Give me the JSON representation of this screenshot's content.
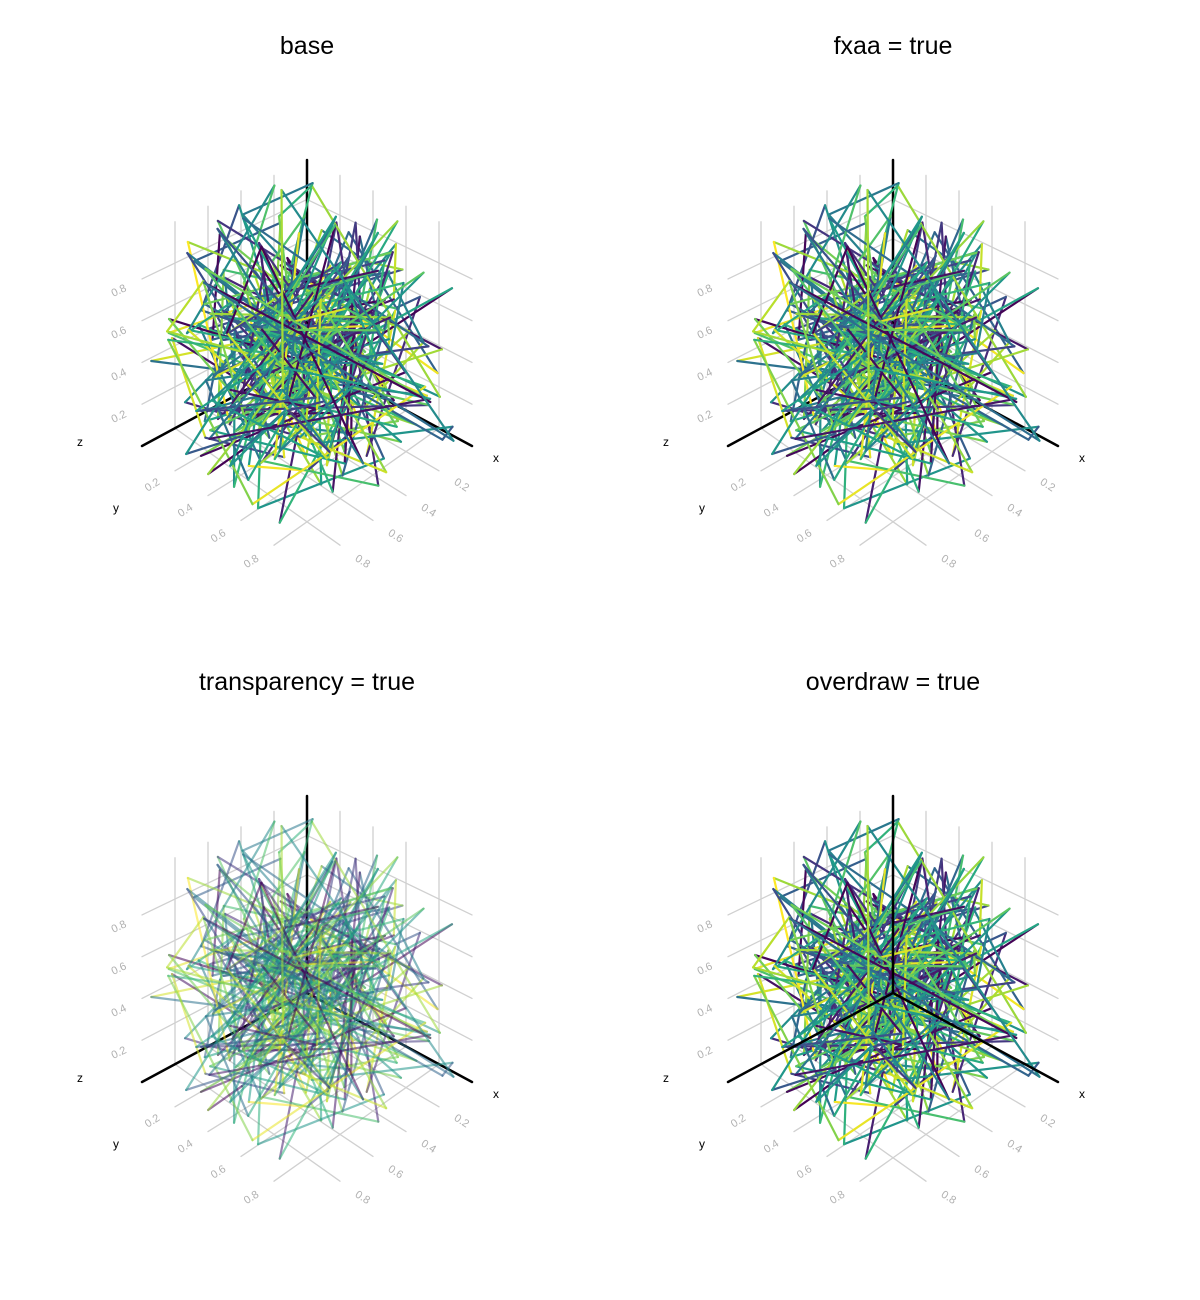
{
  "chart_data": [
    {
      "type": "line",
      "projection": "3d",
      "title": "base",
      "xlabel": "x",
      "ylabel": "y",
      "zlabel": "z",
      "options": {
        "fxaa": false,
        "transparency": false,
        "overdraw": false
      }
    },
    {
      "type": "line",
      "projection": "3d",
      "title": "fxaa = true",
      "xlabel": "x",
      "ylabel": "y",
      "zlabel": "z",
      "options": {
        "fxaa": true,
        "transparency": false,
        "overdraw": false
      }
    },
    {
      "type": "line",
      "projection": "3d",
      "title": "transparency = true",
      "xlabel": "x",
      "ylabel": "y",
      "zlabel": "z",
      "options": {
        "fxaa": false,
        "transparency": true,
        "overdraw": false
      }
    },
    {
      "type": "line",
      "projection": "3d",
      "title": "overdraw = true",
      "xlabel": "x",
      "ylabel": "y",
      "zlabel": "z",
      "options": {
        "fxaa": false,
        "transparency": false,
        "overdraw": true
      }
    }
  ],
  "axes": {
    "xticks": [
      "0.2",
      "0.4",
      "0.6",
      "0.8"
    ],
    "yticks": [
      "0.2",
      "0.4",
      "0.6",
      "0.8"
    ],
    "zticks": [
      "0.2",
      "0.4",
      "0.6",
      "0.8"
    ],
    "xlim": [
      0,
      1
    ],
    "ylim": [
      0,
      1
    ],
    "zlim": [
      0,
      1
    ],
    "grid": true
  },
  "series": {
    "n_points": 320,
    "colormap": "viridis",
    "color_range": [
      0,
      1
    ]
  },
  "colors": {
    "grid": "#d0d0d0",
    "frame": "#000000",
    "tick_label": "#b0b0b0"
  }
}
